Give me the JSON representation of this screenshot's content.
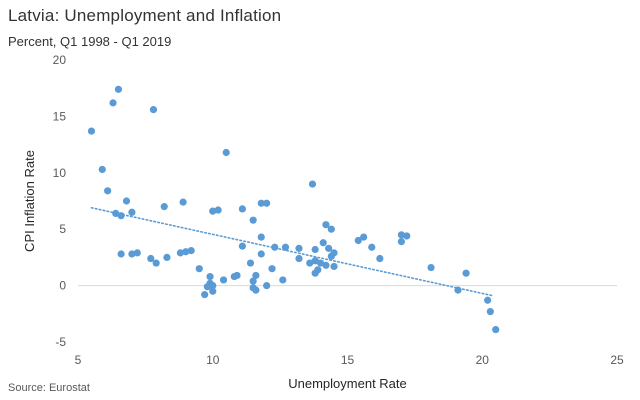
{
  "header": {
    "title": "Latvia: Unemployment and Inflation",
    "subtitle": "Percent, Q1 1998 - Q1 2019"
  },
  "footer": {
    "source": "Source: Eurostat"
  },
  "chart_data": {
    "type": "scatter",
    "xlabel": "Unemployment  Rate",
    "ylabel": "CPI Inflation Rate",
    "xlim": [
      5,
      25
    ],
    "ylim": [
      -5,
      20
    ],
    "xticks": [
      5,
      10,
      15,
      20,
      25
    ],
    "yticks": [
      -5,
      0,
      5,
      10,
      15,
      20
    ],
    "grid": false,
    "trendline": {
      "type": "linear",
      "style": "dotted",
      "x": [
        5.5,
        20.4
      ],
      "y": [
        6.9,
        -0.9
      ]
    },
    "marker_color": "#5B9BD5",
    "trend_color": "#5B9BD5",
    "points": [
      {
        "x": 5.5,
        "y": 13.7
      },
      {
        "x": 6.5,
        "y": 17.4
      },
      {
        "x": 6.3,
        "y": 16.2
      },
      {
        "x": 7.8,
        "y": 15.6
      },
      {
        "x": 5.9,
        "y": 10.3
      },
      {
        "x": 10.5,
        "y": 11.8
      },
      {
        "x": 6.1,
        "y": 8.4
      },
      {
        "x": 6.8,
        "y": 7.5
      },
      {
        "x": 8.2,
        "y": 7.0
      },
      {
        "x": 8.9,
        "y": 7.4
      },
      {
        "x": 13.7,
        "y": 9.0
      },
      {
        "x": 6.4,
        "y": 6.4
      },
      {
        "x": 6.6,
        "y": 6.2
      },
      {
        "x": 7.0,
        "y": 6.5
      },
      {
        "x": 10.0,
        "y": 6.6
      },
      {
        "x": 10.2,
        "y": 6.7
      },
      {
        "x": 11.1,
        "y": 6.8
      },
      {
        "x": 11.8,
        "y": 7.3
      },
      {
        "x": 12.0,
        "y": 7.3
      },
      {
        "x": 11.5,
        "y": 5.8
      },
      {
        "x": 14.2,
        "y": 5.4
      },
      {
        "x": 14.4,
        "y": 5.0
      },
      {
        "x": 11.8,
        "y": 4.3
      },
      {
        "x": 15.4,
        "y": 4.0
      },
      {
        "x": 15.6,
        "y": 4.3
      },
      {
        "x": 17.0,
        "y": 4.5
      },
      {
        "x": 17.2,
        "y": 4.4
      },
      {
        "x": 17.0,
        "y": 3.9
      },
      {
        "x": 11.1,
        "y": 3.5
      },
      {
        "x": 12.3,
        "y": 3.4
      },
      {
        "x": 12.7,
        "y": 3.4
      },
      {
        "x": 13.2,
        "y": 3.3
      },
      {
        "x": 13.8,
        "y": 3.2
      },
      {
        "x": 14.1,
        "y": 3.8
      },
      {
        "x": 14.3,
        "y": 3.3
      },
      {
        "x": 15.9,
        "y": 3.4
      },
      {
        "x": 6.6,
        "y": 2.8
      },
      {
        "x": 7.0,
        "y": 2.8
      },
      {
        "x": 7.2,
        "y": 2.9
      },
      {
        "x": 7.7,
        "y": 2.4
      },
      {
        "x": 7.9,
        "y": 2.0
      },
      {
        "x": 8.3,
        "y": 2.5
      },
      {
        "x": 8.8,
        "y": 2.9
      },
      {
        "x": 9.0,
        "y": 3.0
      },
      {
        "x": 9.2,
        "y": 3.1
      },
      {
        "x": 11.8,
        "y": 2.8
      },
      {
        "x": 13.2,
        "y": 2.4
      },
      {
        "x": 13.6,
        "y": 2.0
      },
      {
        "x": 13.8,
        "y": 2.2
      },
      {
        "x": 14.0,
        "y": 2.0
      },
      {
        "x": 14.4,
        "y": 2.6
      },
      {
        "x": 14.5,
        "y": 2.9
      },
      {
        "x": 16.2,
        "y": 2.4
      },
      {
        "x": 9.5,
        "y": 1.5
      },
      {
        "x": 11.4,
        "y": 2.0
      },
      {
        "x": 12.2,
        "y": 1.5
      },
      {
        "x": 13.9,
        "y": 1.4
      },
      {
        "x": 14.2,
        "y": 1.8
      },
      {
        "x": 14.5,
        "y": 1.7
      },
      {
        "x": 18.1,
        "y": 1.6
      },
      {
        "x": 19.4,
        "y": 1.1
      },
      {
        "x": 13.8,
        "y": 1.1
      },
      {
        "x": 9.9,
        "y": 0.8
      },
      {
        "x": 10.4,
        "y": 0.5
      },
      {
        "x": 10.8,
        "y": 0.8
      },
      {
        "x": 10.9,
        "y": 0.9
      },
      {
        "x": 11.6,
        "y": 0.9
      },
      {
        "x": 11.5,
        "y": 0.4
      },
      {
        "x": 12.6,
        "y": 0.5
      },
      {
        "x": 9.9,
        "y": 0.2
      },
      {
        "x": 10.0,
        "y": 0.0
      },
      {
        "x": 12.0,
        "y": 0.0
      },
      {
        "x": 9.8,
        "y": -0.1
      },
      {
        "x": 10.0,
        "y": -0.5
      },
      {
        "x": 11.5,
        "y": -0.2
      },
      {
        "x": 11.6,
        "y": -0.4
      },
      {
        "x": 9.7,
        "y": -0.8
      },
      {
        "x": 19.1,
        "y": -0.4
      },
      {
        "x": 20.2,
        "y": -1.3
      },
      {
        "x": 20.3,
        "y": -2.3
      },
      {
        "x": 20.5,
        "y": -3.9
      }
    ]
  }
}
